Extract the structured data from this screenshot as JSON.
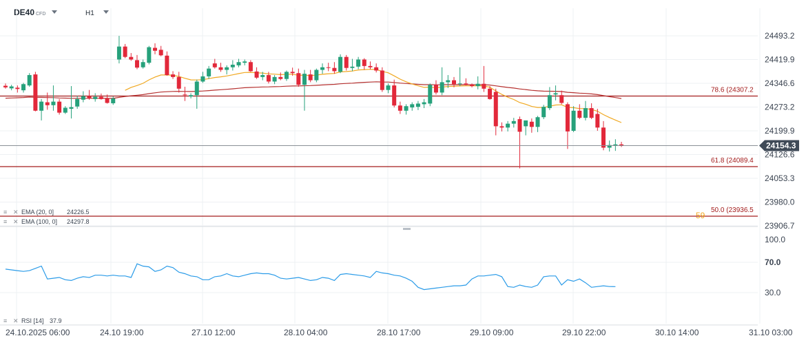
{
  "header": {
    "symbol": "DE40",
    "symbol_tag": "CFD",
    "timeframe": "H1"
  },
  "colors": {
    "bull": "#26a17b",
    "bear": "#e2283a",
    "ema20": "#f0a820",
    "ema100": "#b5302f",
    "fib": "#a31c1c",
    "rsi": "#2a9be8",
    "price_line": "#8a8f96",
    "price_tag_bg": "#3f4a57",
    "grid": "#eef0f3",
    "axis_text": "#3b4451"
  },
  "indicators": [
    {
      "label": "EMA (20, 0]",
      "value": "24226.5"
    },
    {
      "label": "EMA (100, 0]",
      "value": "24297.8"
    }
  ],
  "rsi_legend": {
    "label": "RSI [14]",
    "value": "37.9"
  },
  "price_tag": "24154.3",
  "fib_labels": [
    {
      "text": "78.6 (24307.2",
      "level": 24307.2
    },
    {
      "text": "61.8 (24089.4",
      "level": 24089.4
    },
    {
      "text": "50.0 (23936.5",
      "level": 23936.5
    }
  ],
  "overlap_label": "59",
  "chart_data": {
    "type": "candlestick",
    "title": "",
    "price_ticks": [
      "24493.2",
      "24419.9",
      "24346.6",
      "24273.2",
      "24199.9",
      "24126.6",
      "24053.3",
      "23980.0",
      "23906.7"
    ],
    "ylim": [
      23906.7,
      24493.2
    ],
    "rsi_ticks": [
      "100.0",
      "70.0",
      "30.0"
    ],
    "rsi_ylim": [
      0,
      100
    ],
    "x_labels": [
      "24.10.2025 06:00",
      "24.10 19:00",
      "27.10 12:00",
      "28.10 04:00",
      "28.10 17:00",
      "29.10 09:00",
      "29.10 22:00",
      "30.10 14:00",
      "31.10 03:00"
    ],
    "last_price": 24154.3,
    "candles": [
      {
        "o": 24339,
        "h": 24346,
        "l": 24330,
        "c": 24334
      },
      {
        "o": 24331,
        "h": 24342,
        "l": 24325,
        "c": 24337
      },
      {
        "o": 24333,
        "h": 24340,
        "l": 24318,
        "c": 24329
      },
      {
        "o": 24325,
        "h": 24348,
        "l": 24318,
        "c": 24344
      },
      {
        "o": 24340,
        "h": 24378,
        "l": 24336,
        "c": 24372
      },
      {
        "o": 24374,
        "h": 24382,
        "l": 24260,
        "c": 24262
      },
      {
        "o": 24262,
        "h": 24298,
        "l": 24232,
        "c": 24290
      },
      {
        "o": 24288,
        "h": 24318,
        "l": 24265,
        "c": 24279
      },
      {
        "o": 24279,
        "h": 24340,
        "l": 24262,
        "c": 24290
      },
      {
        "o": 24290,
        "h": 24298,
        "l": 24250,
        "c": 24256
      },
      {
        "o": 24256,
        "h": 24276,
        "l": 24252,
        "c": 24271
      },
      {
        "o": 24268,
        "h": 24338,
        "l": 24238,
        "c": 24273
      },
      {
        "o": 24275,
        "h": 24308,
        "l": 24268,
        "c": 24298
      },
      {
        "o": 24296,
        "h": 24322,
        "l": 24288,
        "c": 24307
      },
      {
        "o": 24307,
        "h": 24326,
        "l": 24296,
        "c": 24301
      },
      {
        "o": 24298,
        "h": 24316,
        "l": 24290,
        "c": 24305
      },
      {
        "o": 24305,
        "h": 24315,
        "l": 24296,
        "c": 24298
      },
      {
        "o": 24300,
        "h": 24312,
        "l": 24284,
        "c": 24286
      },
      {
        "o": 24285,
        "h": 24306,
        "l": 24280,
        "c": 24300
      },
      {
        "o": 24420,
        "h": 24493,
        "l": 24408,
        "c": 24460
      },
      {
        "o": 24460,
        "h": 24468,
        "l": 24424,
        "c": 24428
      },
      {
        "o": 24428,
        "h": 24440,
        "l": 24416,
        "c": 24420
      },
      {
        "o": 24418,
        "h": 24434,
        "l": 24390,
        "c": 24395
      },
      {
        "o": 24396,
        "h": 24420,
        "l": 24392,
        "c": 24412
      },
      {
        "o": 24410,
        "h": 24462,
        "l": 24405,
        "c": 24458
      },
      {
        "o": 24456,
        "h": 24470,
        "l": 24436,
        "c": 24447
      },
      {
        "o": 24450,
        "h": 24462,
        "l": 24430,
        "c": 24433
      },
      {
        "o": 24432,
        "h": 24445,
        "l": 24370,
        "c": 24372
      },
      {
        "o": 24374,
        "h": 24384,
        "l": 24360,
        "c": 24366
      },
      {
        "o": 24366,
        "h": 24382,
        "l": 24318,
        "c": 24330
      },
      {
        "o": 24312,
        "h": 24336,
        "l": 24292,
        "c": 24310
      },
      {
        "o": 24306,
        "h": 24316,
        "l": 24300,
        "c": 24310
      },
      {
        "o": 24310,
        "h": 24358,
        "l": 24268,
        "c": 24352
      },
      {
        "o": 24352,
        "h": 24382,
        "l": 24348,
        "c": 24368
      },
      {
        "o": 24368,
        "h": 24400,
        "l": 24360,
        "c": 24392
      },
      {
        "o": 24408,
        "h": 24422,
        "l": 24392,
        "c": 24396
      },
      {
        "o": 24396,
        "h": 24410,
        "l": 24382,
        "c": 24388
      },
      {
        "o": 24388,
        "h": 24402,
        "l": 24374,
        "c": 24396
      },
      {
        "o": 24396,
        "h": 24418,
        "l": 24386,
        "c": 24404
      },
      {
        "o": 24402,
        "h": 24422,
        "l": 24396,
        "c": 24412
      },
      {
        "o": 24410,
        "h": 24420,
        "l": 24402,
        "c": 24414
      },
      {
        "o": 24412,
        "h": 24418,
        "l": 24382,
        "c": 24384
      },
      {
        "o": 24383,
        "h": 24396,
        "l": 24360,
        "c": 24364
      },
      {
        "o": 24366,
        "h": 24382,
        "l": 24356,
        "c": 24372
      },
      {
        "o": 24372,
        "h": 24382,
        "l": 24346,
        "c": 24352
      },
      {
        "o": 24352,
        "h": 24372,
        "l": 24344,
        "c": 24366
      },
      {
        "o": 24366,
        "h": 24380,
        "l": 24356,
        "c": 24360
      },
      {
        "o": 24360,
        "h": 24386,
        "l": 24354,
        "c": 24382
      },
      {
        "o": 24382,
        "h": 24395,
        "l": 24370,
        "c": 24378
      },
      {
        "o": 24378,
        "h": 24392,
        "l": 24336,
        "c": 24342
      },
      {
        "o": 24342,
        "h": 24388,
        "l": 24262,
        "c": 24376
      },
      {
        "o": 24374,
        "h": 24388,
        "l": 24350,
        "c": 24356
      },
      {
        "o": 24356,
        "h": 24392,
        "l": 24350,
        "c": 24388
      },
      {
        "o": 24388,
        "h": 24408,
        "l": 24376,
        "c": 24396
      },
      {
        "o": 24396,
        "h": 24410,
        "l": 24384,
        "c": 24394
      },
      {
        "o": 24394,
        "h": 24412,
        "l": 24376,
        "c": 24384
      },
      {
        "o": 24382,
        "h": 24436,
        "l": 24378,
        "c": 24428
      },
      {
        "o": 24428,
        "h": 24434,
        "l": 24386,
        "c": 24394
      },
      {
        "o": 24394,
        "h": 24422,
        "l": 24384,
        "c": 24398
      },
      {
        "o": 24398,
        "h": 24428,
        "l": 24390,
        "c": 24420
      },
      {
        "o": 24420,
        "h": 24424,
        "l": 24388,
        "c": 24400
      },
      {
        "o": 24400,
        "h": 24414,
        "l": 24390,
        "c": 24396
      },
      {
        "o": 24396,
        "h": 24408,
        "l": 24380,
        "c": 24386
      },
      {
        "o": 24386,
        "h": 24396,
        "l": 24320,
        "c": 24326
      },
      {
        "o": 24326,
        "h": 24346,
        "l": 24316,
        "c": 24340
      },
      {
        "o": 24340,
        "h": 24358,
        "l": 24272,
        "c": 24278
      },
      {
        "o": 24278,
        "h": 24290,
        "l": 24252,
        "c": 24262
      },
      {
        "o": 24262,
        "h": 24282,
        "l": 24250,
        "c": 24276
      },
      {
        "o": 24272,
        "h": 24288,
        "l": 24262,
        "c": 24282
      },
      {
        "o": 24274,
        "h": 24292,
        "l": 24264,
        "c": 24284
      },
      {
        "o": 24282,
        "h": 24298,
        "l": 24270,
        "c": 24288
      },
      {
        "o": 24284,
        "h": 24346,
        "l": 24276,
        "c": 24342
      },
      {
        "o": 24342,
        "h": 24356,
        "l": 24312,
        "c": 24318
      },
      {
        "o": 24318,
        "h": 24396,
        "l": 24310,
        "c": 24350
      },
      {
        "o": 24350,
        "h": 24372,
        "l": 24332,
        "c": 24356
      },
      {
        "o": 24356,
        "h": 24366,
        "l": 24334,
        "c": 24344
      },
      {
        "o": 24344,
        "h": 24396,
        "l": 24338,
        "c": 24346
      },
      {
        "o": 24346,
        "h": 24362,
        "l": 24340,
        "c": 24342
      },
      {
        "o": 24342,
        "h": 24346,
        "l": 24334,
        "c": 24338
      },
      {
        "o": 24338,
        "h": 24368,
        "l": 24328,
        "c": 24345
      },
      {
        "o": 24345,
        "h": 24400,
        "l": 24320,
        "c": 24330
      },
      {
        "o": 24330,
        "h": 24338,
        "l": 24296,
        "c": 24298
      },
      {
        "o": 24320,
        "h": 24330,
        "l": 24186,
        "c": 24214
      },
      {
        "o": 24214,
        "h": 24226,
        "l": 24198,
        "c": 24210
      },
      {
        "o": 24210,
        "h": 24230,
        "l": 24198,
        "c": 24222
      },
      {
        "o": 24222,
        "h": 24240,
        "l": 24210,
        "c": 24230
      },
      {
        "o": 24236,
        "h": 24244,
        "l": 24084,
        "c": 24197
      },
      {
        "o": 24214,
        "h": 24232,
        "l": 24186,
        "c": 24232
      },
      {
        "o": 24228,
        "h": 24238,
        "l": 24194,
        "c": 24212
      },
      {
        "o": 24212,
        "h": 24246,
        "l": 24196,
        "c": 24242
      },
      {
        "o": 24242,
        "h": 24280,
        "l": 24236,
        "c": 24274
      },
      {
        "o": 24270,
        "h": 24335,
        "l": 24264,
        "c": 24310
      },
      {
        "o": 24312,
        "h": 24340,
        "l": 24294,
        "c": 24316
      },
      {
        "o": 24310,
        "h": 24324,
        "l": 24282,
        "c": 24286
      },
      {
        "o": 24282,
        "h": 24288,
        "l": 24144,
        "c": 24198
      },
      {
        "o": 24200,
        "h": 24276,
        "l": 24196,
        "c": 24262
      },
      {
        "o": 24262,
        "h": 24282,
        "l": 24236,
        "c": 24240
      },
      {
        "o": 24240,
        "h": 24292,
        "l": 24232,
        "c": 24270
      },
      {
        "o": 24270,
        "h": 24285,
        "l": 24236,
        "c": 24240
      },
      {
        "o": 24252,
        "h": 24268,
        "l": 24200,
        "c": 24210
      },
      {
        "o": 24210,
        "h": 24230,
        "l": 24140,
        "c": 24148
      },
      {
        "o": 24148,
        "h": 24170,
        "l": 24136,
        "c": 24156
      },
      {
        "o": 24154,
        "h": 24174,
        "l": 24138,
        "c": 24158
      },
      {
        "o": 24158,
        "h": 24166,
        "l": 24150,
        "c": 24154
      }
    ],
    "rsi_values": [
      61,
      60,
      59,
      58,
      59,
      62,
      65,
      48,
      49,
      50,
      47,
      46,
      49,
      51,
      50,
      53,
      53,
      52,
      53,
      52,
      52,
      50,
      68,
      65,
      64,
      58,
      60,
      65,
      63,
      57,
      55,
      52,
      51,
      47,
      47,
      51,
      52,
      55,
      52,
      51,
      53,
      55,
      56,
      55,
      55,
      53,
      49,
      48,
      49,
      50,
      48,
      46,
      47,
      50,
      49,
      46,
      54,
      55,
      54,
      53,
      52,
      50,
      58,
      56,
      55,
      53,
      52,
      49,
      45,
      37,
      34,
      35,
      36,
      37,
      38,
      39,
      39,
      40,
      48,
      52,
      52,
      53,
      54,
      51,
      38,
      37,
      40,
      38,
      37,
      40,
      51,
      52,
      52,
      40,
      47,
      45,
      48,
      43,
      37,
      38,
      39,
      38,
      37.9
    ]
  }
}
